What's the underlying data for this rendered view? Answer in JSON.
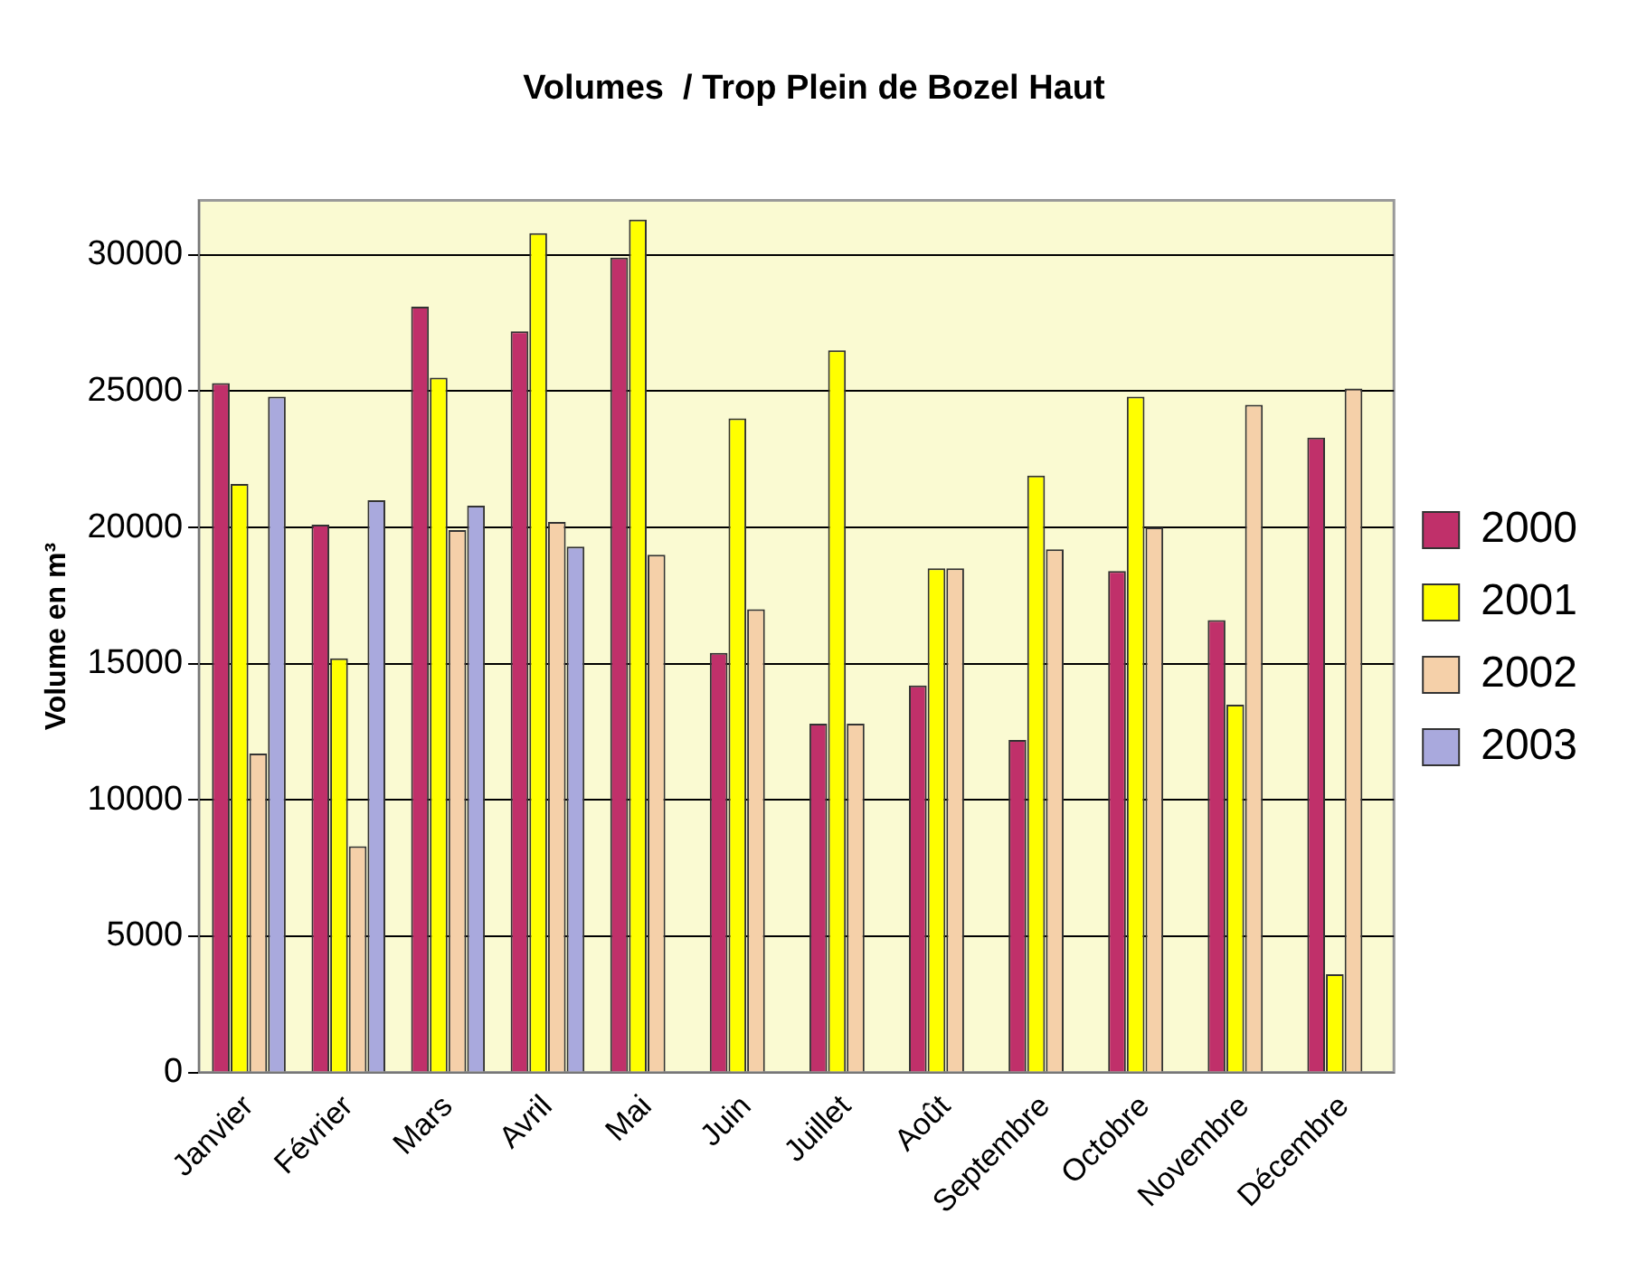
{
  "chart_data": {
    "type": "bar",
    "title": "Volumes  / Trop Plein de Bozel Haut",
    "ylabel": "Volume en m³",
    "categories": [
      "Janvier",
      "Février",
      "Mars",
      "Avril",
      "Mai",
      "Juin",
      "Juillet",
      "Août",
      "Septembre",
      "Octobre",
      "Novembre",
      "Décembre"
    ],
    "series": [
      {
        "name": "2000",
        "color": "#c0306a",
        "values": [
          25300,
          20100,
          28100,
          27200,
          29900,
          15400,
          12800,
          14200,
          12200,
          18400,
          16600,
          23300
        ]
      },
      {
        "name": "2001",
        "color": "#ffff00",
        "values": [
          21600,
          15200,
          25500,
          30800,
          31300,
          24000,
          26500,
          18500,
          21900,
          24800,
          13500,
          3600
        ]
      },
      {
        "name": "2002",
        "color": "#f5d0a9",
        "values": [
          11700,
          8300,
          19900,
          20200,
          19000,
          17000,
          12800,
          18500,
          19200,
          20000,
          24500,
          25100
        ]
      },
      {
        "name": "2003",
        "color": "#a9a9dd",
        "values": [
          24800,
          21000,
          20800,
          19300,
          null,
          null,
          null,
          null,
          null,
          null,
          null,
          null
        ]
      }
    ],
    "ylim": [
      0,
      32000
    ],
    "yticks": [
      0,
      5000,
      10000,
      15000,
      20000,
      25000,
      30000
    ],
    "grid": "y",
    "legend": "right"
  }
}
